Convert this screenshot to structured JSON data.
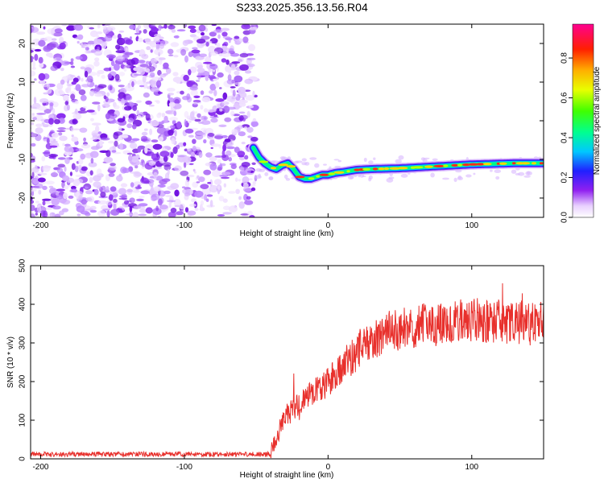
{
  "title": "S233.2025.356.13.56.R04",
  "chart_data": [
    {
      "type": "heatmap",
      "name": "spectrogram",
      "xlabel": "Height of straight line (km)",
      "ylabel": "Frequency (Hz)",
      "xlim": [
        -207,
        150
      ],
      "ylim": [
        -25,
        25
      ],
      "xticks": [
        -200,
        -100,
        0,
        100
      ],
      "yticks": [
        -20,
        -10,
        0,
        10,
        20
      ],
      "noise_region_x": [
        -207,
        -50
      ],
      "signal_trace": {
        "x": [
          -52,
          -48,
          -44,
          -40,
          -36,
          -32,
          -28,
          -24,
          -20,
          -16,
          -12,
          -8,
          -4,
          0,
          5,
          10,
          15,
          20,
          30,
          40,
          50,
          60,
          70,
          80,
          90,
          100,
          110,
          120,
          130,
          140,
          150
        ],
        "y": [
          -7,
          -9.5,
          -11,
          -12,
          -12.5,
          -11.5,
          -11,
          -12.5,
          -14.5,
          -15,
          -15,
          -14.5,
          -14,
          -14,
          -13.5,
          -13.3,
          -13,
          -12.7,
          -12.5,
          -12.4,
          -12.3,
          -12.1,
          -11.9,
          -11.7,
          -11.5,
          -11.3,
          -11.2,
          -11.1,
          -11,
          -11,
          -11
        ]
      }
    },
    {
      "type": "line",
      "name": "snr",
      "xlabel": "Height of straight line (km)",
      "ylabel": "SNR (10 * v/v)",
      "xlim": [
        -207,
        150
      ],
      "ylim": [
        0,
        500
      ],
      "xticks": [
        -200,
        -100,
        0,
        100
      ],
      "yticks": [
        0,
        100,
        200,
        300,
        400,
        500
      ],
      "color": "#e8302c",
      "envelope": {
        "x": [
          -207,
          -40,
          -37,
          -30,
          -20,
          -10,
          0,
          10,
          20,
          30,
          40,
          50,
          60,
          80,
          100,
          120,
          140,
          150
        ],
        "y": [
          12,
          12,
          45,
          110,
          140,
          170,
          200,
          240,
          275,
          305,
          330,
          335,
          345,
          350,
          360,
          355,
          350,
          360
        ]
      }
    }
  ],
  "colorbar": {
    "label": "Normalized spectral amplitude",
    "ticks": [
      "0.0",
      "0.2",
      "0.4",
      "0.6",
      "0.8"
    ],
    "tick_values": [
      0,
      0.2,
      0.4,
      0.6,
      0.8
    ],
    "range": [
      0,
      0.97
    ]
  }
}
